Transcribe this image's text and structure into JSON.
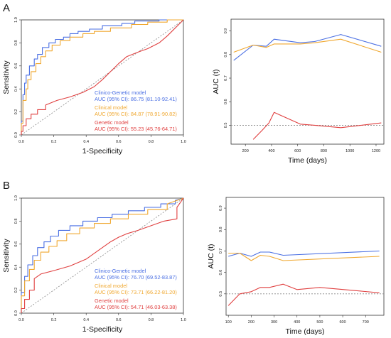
{
  "panels": [
    {
      "label": "A"
    },
    {
      "label": "B"
    }
  ],
  "colors": {
    "combined": "#4a6fe3",
    "clinical": "#f0a830",
    "genetic": "#e04040",
    "reference": "#888888"
  },
  "chart_data": [
    {
      "type": "line",
      "panel": "A",
      "subtype": "roc",
      "xlabel": "1-Specificity",
      "ylabel": "Sensitivity",
      "xlim": [
        0,
        1
      ],
      "ylim": [
        0,
        1
      ],
      "xticks": [
        "0.0",
        "0.2",
        "0.4",
        "0.6",
        "0.8",
        "1.0"
      ],
      "yticks": [
        "0.0",
        "0.2",
        "0.4",
        "0.6",
        "0.8",
        "1.0"
      ],
      "legend": [
        {
          "name": "Clinico-Genetic model",
          "auc": "AUC (95% CI): 86.75 (81.10-92.41)"
        },
        {
          "name": "Clinical model",
          "auc": "AUC (95% CI): 84.87 (78.91-90.82)"
        },
        {
          "name": "Genetic model",
          "auc": "AUC (95% CI): 55.23 (45.76-64.71)"
        }
      ],
      "series": [
        {
          "name": "Clinico-Genetic model",
          "color": "#4a6fe3",
          "x": [
            0,
            0,
            0.01,
            0.01,
            0.02,
            0.02,
            0.03,
            0.03,
            0.05,
            0.05,
            0.08,
            0.08,
            0.1,
            0.1,
            0.13,
            0.13,
            0.17,
            0.17,
            0.21,
            0.21,
            0.26,
            0.26,
            0.3,
            0.3,
            0.35,
            0.35,
            0.42,
            0.42,
            0.5,
            0.5,
            0.62,
            0.62,
            0.7,
            0.7,
            0.85,
            0.85,
            1
          ],
          "y": [
            0,
            0.12,
            0.12,
            0.35,
            0.35,
            0.45,
            0.45,
            0.52,
            0.52,
            0.6,
            0.6,
            0.66,
            0.66,
            0.7,
            0.7,
            0.76,
            0.76,
            0.8,
            0.8,
            0.83,
            0.83,
            0.85,
            0.85,
            0.88,
            0.88,
            0.9,
            0.9,
            0.92,
            0.92,
            0.95,
            0.95,
            0.97,
            0.97,
            0.99,
            0.99,
            1,
            1
          ]
        },
        {
          "name": "Clinical model",
          "color": "#f0a830",
          "x": [
            0,
            0,
            0.01,
            0.01,
            0.03,
            0.03,
            0.04,
            0.04,
            0.06,
            0.06,
            0.09,
            0.09,
            0.12,
            0.12,
            0.15,
            0.15,
            0.19,
            0.19,
            0.24,
            0.24,
            0.3,
            0.3,
            0.38,
            0.38,
            0.45,
            0.45,
            0.55,
            0.55,
            0.68,
            0.68,
            0.78,
            0.78,
            0.9,
            0.9,
            1
          ],
          "y": [
            0,
            0.1,
            0.1,
            0.3,
            0.3,
            0.4,
            0.4,
            0.48,
            0.48,
            0.55,
            0.55,
            0.62,
            0.62,
            0.68,
            0.68,
            0.73,
            0.73,
            0.78,
            0.78,
            0.82,
            0.82,
            0.85,
            0.85,
            0.88,
            0.88,
            0.9,
            0.9,
            0.93,
            0.93,
            0.96,
            0.96,
            0.98,
            0.98,
            1,
            1
          ]
        },
        {
          "name": "Genetic model",
          "color": "#e04040",
          "x": [
            0,
            0,
            0.01,
            0.01,
            0.03,
            0.03,
            0.06,
            0.06,
            0.1,
            0.1,
            0.15,
            0.15,
            0.22,
            0.3,
            0.38,
            0.45,
            0.5,
            0.55,
            0.6,
            0.65,
            0.72,
            0.78,
            0.85,
            0.9,
            0.95,
            1
          ],
          "y": [
            0,
            0.03,
            0.03,
            0.08,
            0.08,
            0.14,
            0.14,
            0.18,
            0.18,
            0.22,
            0.22,
            0.26,
            0.3,
            0.33,
            0.37,
            0.42,
            0.48,
            0.55,
            0.62,
            0.68,
            0.72,
            0.75,
            0.8,
            0.86,
            0.93,
            1
          ]
        }
      ]
    },
    {
      "type": "line",
      "panel": "A",
      "subtype": "time-dependent-auc",
      "xlabel": "Time (days)",
      "ylabel": "AUC (t)",
      "xlim": [
        90,
        1260
      ],
      "ylim": [
        0.42,
        0.95
      ],
      "xticks": [
        "200",
        "400",
        "600",
        "800",
        "1000",
        "1200"
      ],
      "yticks": [
        "0.5",
        "0.6",
        "0.7",
        "0.8",
        "0.9"
      ],
      "reference_line": 0.5,
      "series": [
        {
          "name": "Clinico-Genetic model",
          "color": "#4a6fe3",
          "x": [
            110,
            260,
            360,
            420,
            620,
            730,
            930,
            1240
          ],
          "y": [
            0.775,
            0.84,
            0.835,
            0.865,
            0.85,
            0.855,
            0.885,
            0.835
          ]
        },
        {
          "name": "Clinical model",
          "color": "#f0a830",
          "x": [
            110,
            260,
            360,
            420,
            620,
            730,
            930,
            1240
          ],
          "y": [
            0.81,
            0.84,
            0.83,
            0.845,
            0.845,
            0.85,
            0.865,
            0.81
          ]
        },
        {
          "name": "Genetic model",
          "color": "#e04040",
          "x": [
            260,
            330,
            380,
            420,
            480,
            620,
            730,
            930,
            1240
          ],
          "y": [
            0.44,
            0.48,
            0.51,
            0.555,
            0.54,
            0.505,
            0.5,
            0.49,
            0.51
          ]
        }
      ]
    },
    {
      "type": "line",
      "panel": "B",
      "subtype": "roc",
      "xlabel": "1-Specificity",
      "ylabel": "Sensitivity",
      "xlim": [
        0,
        1
      ],
      "ylim": [
        0,
        1
      ],
      "xticks": [
        "0.0",
        "0.2",
        "0.4",
        "0.6",
        "0.8",
        "1.0"
      ],
      "yticks": [
        "0.0",
        "0.2",
        "0.4",
        "0.6",
        "0.8",
        "1.0"
      ],
      "legend": [
        {
          "name": "Clinico-Genetic model",
          "auc": "AUC (95% CI): 76.70 (69.52-83.87)"
        },
        {
          "name": "Clinical model",
          "auc": "AUC (95% CI): 73.71 (66.22-81.20)"
        },
        {
          "name": "Genetic model",
          "auc": "AUC (95% CI): 54.71 (46.03-63.38)"
        }
      ],
      "series": [
        {
          "name": "Clinico-Genetic model",
          "color": "#4a6fe3",
          "x": [
            0,
            0,
            0.02,
            0.02,
            0.04,
            0.04,
            0.07,
            0.07,
            0.1,
            0.1,
            0.14,
            0.14,
            0.18,
            0.18,
            0.23,
            0.23,
            0.3,
            0.3,
            0.38,
            0.38,
            0.47,
            0.47,
            0.56,
            0.56,
            0.66,
            0.66,
            0.76,
            0.76,
            0.86,
            0.86,
            0.95,
            0.95,
            1
          ],
          "y": [
            0,
            0.18,
            0.18,
            0.32,
            0.32,
            0.42,
            0.42,
            0.5,
            0.5,
            0.57,
            0.57,
            0.62,
            0.62,
            0.67,
            0.67,
            0.72,
            0.72,
            0.76,
            0.76,
            0.8,
            0.8,
            0.83,
            0.83,
            0.86,
            0.86,
            0.89,
            0.89,
            0.92,
            0.92,
            0.95,
            0.95,
            0.98,
            1
          ]
        },
        {
          "name": "Clinical model",
          "color": "#f0a830",
          "x": [
            0,
            0,
            0.02,
            0.02,
            0.05,
            0.05,
            0.08,
            0.08,
            0.12,
            0.12,
            0.17,
            0.17,
            0.22,
            0.22,
            0.28,
            0.28,
            0.36,
            0.36,
            0.45,
            0.45,
            0.55,
            0.55,
            0.66,
            0.66,
            0.78,
            0.78,
            0.9,
            0.9,
            1
          ],
          "y": [
            0,
            0.15,
            0.15,
            0.28,
            0.28,
            0.38,
            0.38,
            0.46,
            0.46,
            0.53,
            0.53,
            0.58,
            0.58,
            0.63,
            0.63,
            0.69,
            0.69,
            0.74,
            0.74,
            0.78,
            0.78,
            0.82,
            0.82,
            0.86,
            0.86,
            0.9,
            0.9,
            0.95,
            1
          ]
        },
        {
          "name": "Genetic model",
          "color": "#e04040",
          "x": [
            0,
            0,
            0.02,
            0.02,
            0.05,
            0.05,
            0.08,
            0.08,
            0.12,
            0.2,
            0.3,
            0.4,
            0.48,
            0.55,
            0.6,
            0.65,
            0.72,
            0.8,
            0.88,
            0.96,
            0.96,
            1
          ],
          "y": [
            0,
            0.04,
            0.04,
            0.12,
            0.12,
            0.2,
            0.2,
            0.3,
            0.34,
            0.37,
            0.41,
            0.47,
            0.55,
            0.62,
            0.66,
            0.69,
            0.72,
            0.76,
            0.8,
            0.82,
            0.92,
            1
          ]
        }
      ]
    },
    {
      "type": "line",
      "panel": "B",
      "subtype": "time-dependent-auc",
      "xlabel": "Time (days)",
      "ylabel": "AUC (t)",
      "xlim": [
        90,
        780
      ],
      "ylim": [
        0.4,
        0.95
      ],
      "xticks": [
        "100",
        "200",
        "300",
        "400",
        "500",
        "600",
        "700"
      ],
      "yticks": [
        "0.5",
        "0.6",
        "0.7",
        "0.8",
        "0.9"
      ],
      "reference_line": 0.5,
      "series": [
        {
          "name": "Clinico-Genetic model",
          "color": "#4a6fe3",
          "x": [
            100,
            150,
            200,
            240,
            280,
            340,
            760
          ],
          "y": [
            0.675,
            0.69,
            0.675,
            0.695,
            0.695,
            0.68,
            0.7
          ]
        },
        {
          "name": "Clinical model",
          "color": "#f0a830",
          "x": [
            100,
            150,
            200,
            240,
            280,
            340,
            760
          ],
          "y": [
            0.69,
            0.69,
            0.655,
            0.68,
            0.675,
            0.655,
            0.675
          ]
        },
        {
          "name": "Genetic model",
          "color": "#e04040",
          "x": [
            100,
            150,
            200,
            240,
            280,
            340,
            400,
            500,
            760
          ],
          "y": [
            0.445,
            0.5,
            0.51,
            0.53,
            0.53,
            0.545,
            0.52,
            0.53,
            0.505
          ]
        }
      ]
    }
  ]
}
